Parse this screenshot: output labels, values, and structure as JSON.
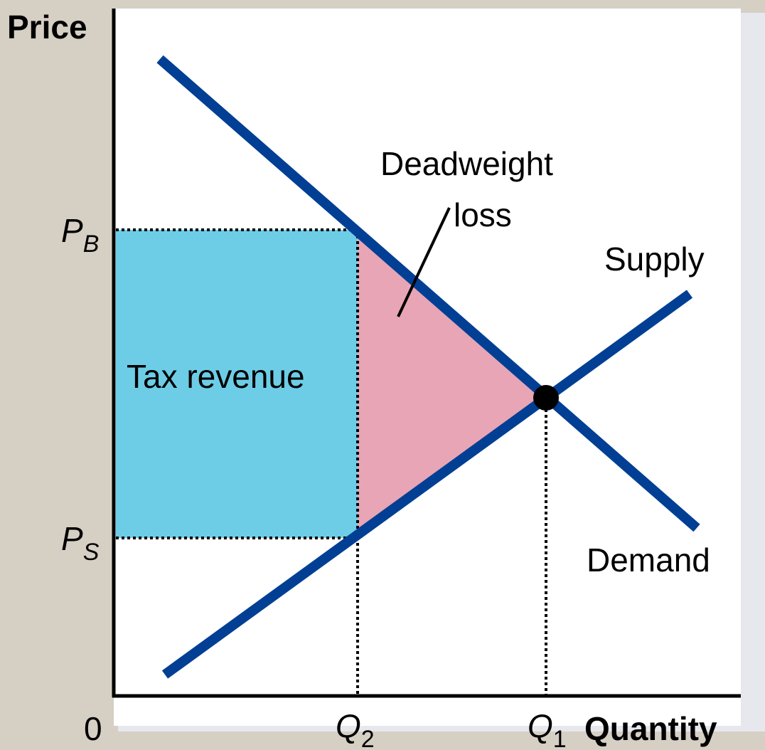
{
  "axes": {
    "y_label": "Price",
    "x_label": "Quantity",
    "origin": "0"
  },
  "price_levels": [
    {
      "main": "P",
      "sub": "B"
    },
    {
      "main": "P",
      "sub": "S"
    }
  ],
  "quantity_levels": [
    {
      "main": "Q",
      "sub": "2"
    },
    {
      "main": "Q",
      "sub": "1"
    }
  ],
  "curves": {
    "supply": "Supply",
    "demand": "Demand"
  },
  "areas": {
    "tax_revenue": "Tax revenue",
    "deadweight_loss": [
      "Deadweight",
      "loss"
    ]
  }
}
